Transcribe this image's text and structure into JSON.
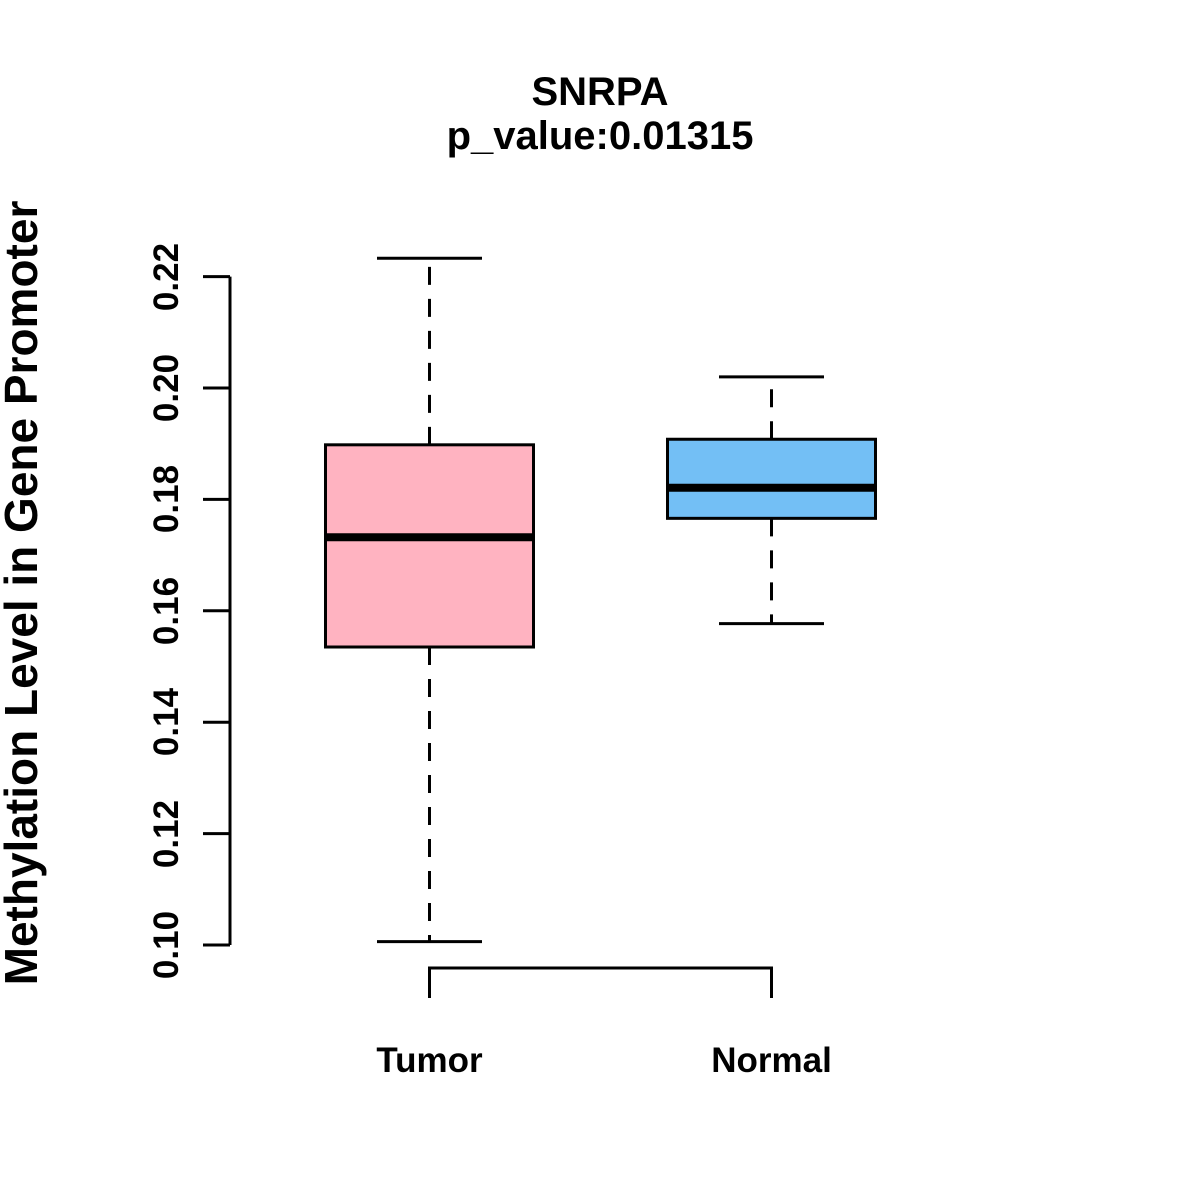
{
  "figure": {
    "background": "#ffffff",
    "axis_color": "#000000",
    "text_color": "#000000"
  },
  "chart_data": {
    "type": "boxplot",
    "title": "SNRPA",
    "subtitle": "p_value:0.01315",
    "p_value": 0.01315,
    "ylabel": "Methylation Level in Gene Promoter",
    "xlabel": "",
    "y_ticks": [
      "0.10",
      "0.12",
      "0.14",
      "0.16",
      "0.18",
      "0.20",
      "0.22"
    ],
    "ylim": [
      0.098,
      0.2265
    ],
    "grid": false,
    "legend": "none",
    "categories": [
      "Tumor",
      "Normal"
    ],
    "groups": [
      {
        "label": "Tumor",
        "fill": "#FFB3C1",
        "stroke": "#000000",
        "whisker_low": 0.1006,
        "q1": 0.1535,
        "median": 0.1732,
        "q3": 0.1898,
        "whisker_high": 0.2233
      },
      {
        "label": "Normal",
        "fill": "#73BFF5",
        "stroke": "#000000",
        "whisker_low": 0.1577,
        "q1": 0.1766,
        "median": 0.1821,
        "q3": 0.1908,
        "whisker_high": 0.202
      }
    ]
  }
}
